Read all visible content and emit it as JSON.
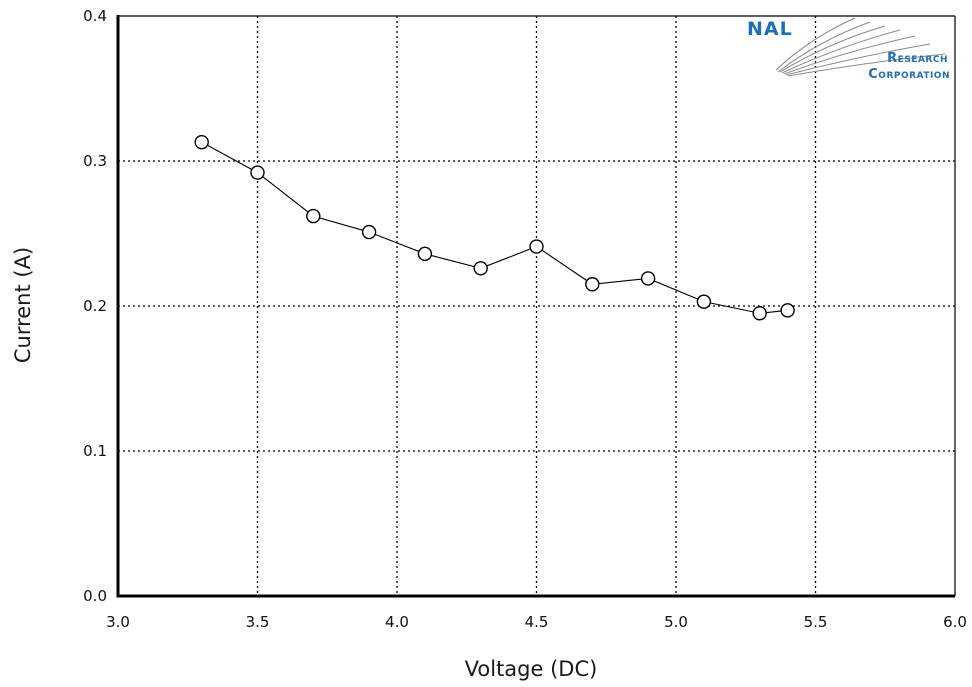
{
  "logo": {
    "line1": "NAL",
    "line2": "Research",
    "line3": "Corporation",
    "color": "#1f6fb5"
  },
  "chart_data": {
    "type": "line",
    "xlabel": "Voltage (DC)",
    "ylabel": "Current (A)",
    "xlim": [
      3.0,
      6.0
    ],
    "ylim": [
      0.0,
      0.4
    ],
    "x_ticks": [
      3.0,
      3.5,
      4.0,
      4.5,
      5.0,
      5.5,
      6.0
    ],
    "x_tick_labels": [
      "3.0",
      "3.5",
      "4.0",
      "4.5",
      "5.0",
      "5.5",
      "6.0"
    ],
    "y_ticks": [
      0.0,
      0.1,
      0.2,
      0.3,
      0.4
    ],
    "y_tick_labels": [
      "0.0",
      "0.1",
      "0.2",
      "0.3",
      "0.4"
    ],
    "grid": true,
    "marker": "open-circle",
    "series": [
      {
        "x": [
          3.3,
          3.5,
          3.7,
          3.9,
          4.1,
          4.3,
          4.5,
          4.7,
          4.9,
          5.1,
          5.3,
          5.4
        ],
        "y": [
          0.313,
          0.292,
          0.262,
          0.251,
          0.236,
          0.226,
          0.241,
          0.215,
          0.219,
          0.203,
          0.195,
          0.197
        ]
      }
    ]
  }
}
